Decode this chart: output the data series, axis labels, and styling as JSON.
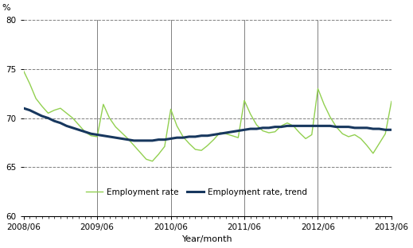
{
  "title": "",
  "ylabel": "%",
  "xlabel": "Year/month",
  "ylim": [
    60,
    80
  ],
  "yticks": [
    60,
    65,
    70,
    75,
    80
  ],
  "xlim_start": 0,
  "xlim_end": 60,
  "xtick_positions": [
    0,
    12,
    24,
    36,
    48,
    60
  ],
  "xtick_labels": [
    "2008/06",
    "2009/06",
    "2010/06",
    "2011/06",
    "2012/06",
    "2013/06"
  ],
  "vline_positions": [
    12,
    24,
    36,
    48,
    60
  ],
  "employment_rate": [
    74.8,
    73.5,
    72.0,
    71.2,
    70.5,
    70.8,
    71.0,
    70.5,
    70.0,
    69.3,
    68.6,
    68.2,
    68.1,
    71.4,
    70.0,
    69.1,
    68.5,
    67.9,
    67.2,
    66.5,
    65.8,
    65.6,
    66.3,
    67.1,
    70.9,
    69.2,
    68.1,
    67.4,
    66.8,
    66.7,
    67.2,
    67.8,
    68.5,
    68.4,
    68.2,
    68.0,
    71.8,
    70.4,
    69.3,
    68.7,
    68.5,
    68.6,
    69.2,
    69.5,
    69.2,
    68.5,
    67.9,
    68.3,
    73.0,
    71.4,
    70.1,
    69.1,
    68.4,
    68.1,
    68.3,
    67.9,
    67.2,
    66.4,
    67.4,
    68.4,
    71.7
  ],
  "employment_trend": [
    71.0,
    70.8,
    70.5,
    70.2,
    70.0,
    69.7,
    69.5,
    69.2,
    69.0,
    68.8,
    68.6,
    68.4,
    68.3,
    68.2,
    68.1,
    68.0,
    67.9,
    67.8,
    67.7,
    67.7,
    67.7,
    67.7,
    67.8,
    67.8,
    67.9,
    68.0,
    68.0,
    68.1,
    68.1,
    68.2,
    68.2,
    68.3,
    68.4,
    68.5,
    68.6,
    68.7,
    68.8,
    68.9,
    68.9,
    69.0,
    69.0,
    69.1,
    69.1,
    69.2,
    69.2,
    69.2,
    69.2,
    69.2,
    69.2,
    69.2,
    69.2,
    69.1,
    69.1,
    69.1,
    69.0,
    69.0,
    69.0,
    68.9,
    68.9,
    68.8,
    68.8
  ],
  "line_color_employment": "#92d050",
  "line_color_trend": "#17375e",
  "legend_labels": [
    "Employment rate",
    "Employment rate, trend"
  ],
  "bg_color": "#ffffff",
  "grid_color": "#808080",
  "vline_color": "#808080",
  "font_size": 7.5
}
